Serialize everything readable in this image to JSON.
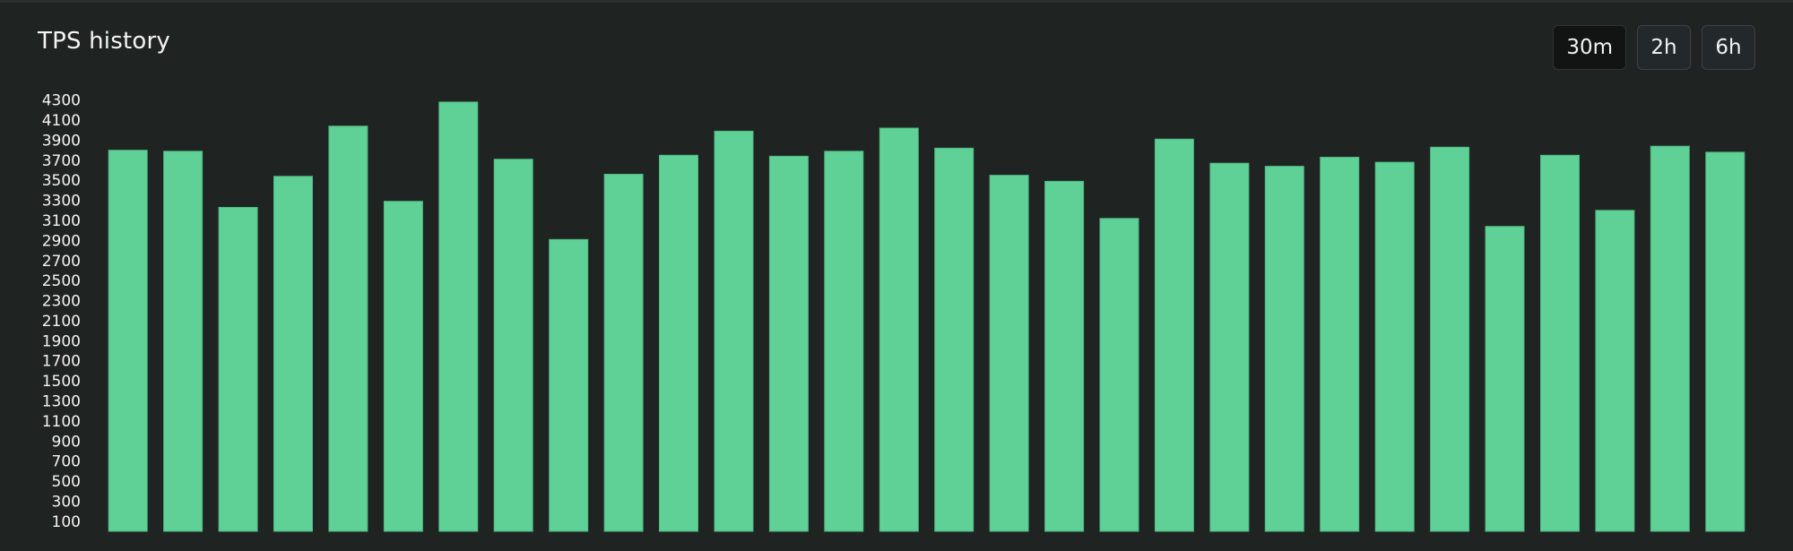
{
  "panel": {
    "title": "TPS history"
  },
  "range_selector": {
    "options": [
      "30m",
      "2h",
      "6h"
    ],
    "selected": "30m"
  },
  "chart_data": {
    "type": "bar",
    "title": "TPS history",
    "ylim": [
      0,
      4400
    ],
    "yticks": [
      100,
      300,
      500,
      700,
      900,
      1100,
      1300,
      1500,
      1700,
      1900,
      2100,
      2300,
      2500,
      2700,
      2900,
      3100,
      3300,
      3500,
      3700,
      3900,
      4100,
      4300
    ],
    "values": [
      3800,
      3790,
      3230,
      3540,
      4040,
      3290,
      4280,
      3710,
      2910,
      3560,
      3750,
      3990,
      3740,
      3790,
      4020,
      3820,
      3550,
      3490,
      3120,
      3910,
      3670,
      3640,
      3730,
      3680,
      3830,
      3040,
      3750,
      3200,
      3840,
      3780
    ],
    "grid": false,
    "bar_color": "#5fd197"
  }
}
